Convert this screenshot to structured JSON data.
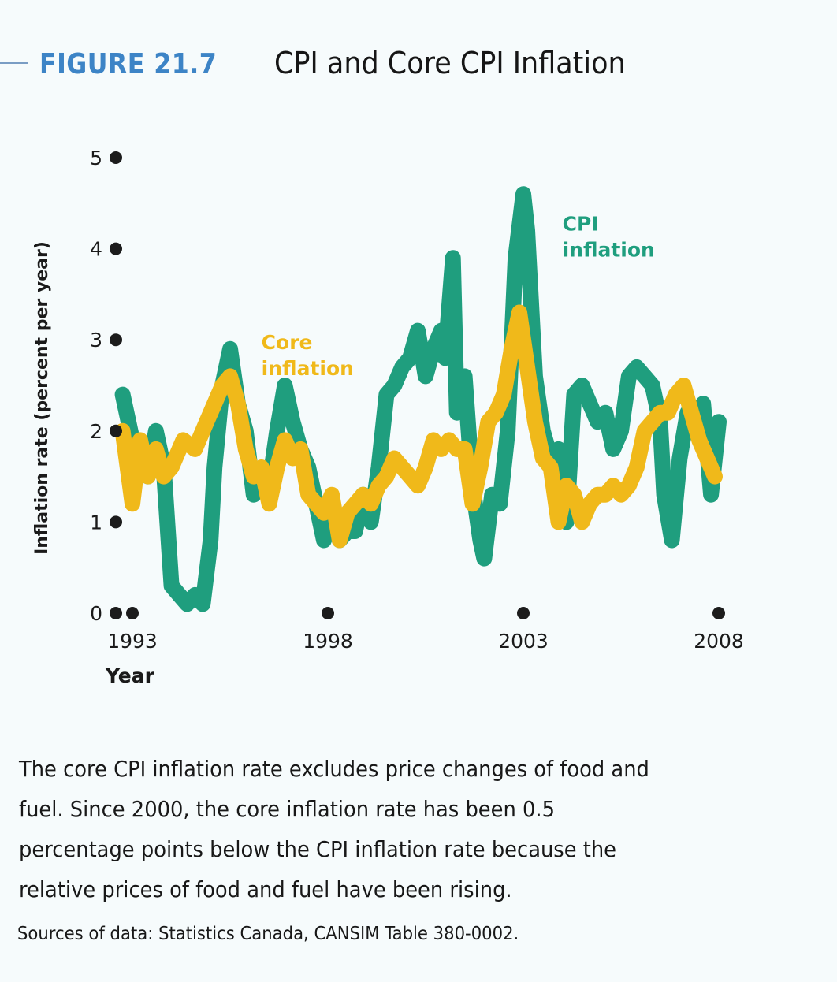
{
  "figure": {
    "label": "FIGURE 21.7",
    "title": "CPI and Core CPI Inflation"
  },
  "caption": "The core CPI inflation rate excludes price changes of food and fuel. Since 2000, the core inflation rate has been 0.5 percentage points below the CPI inflation rate because the relative prices of food and fuel have been rising.",
  "source": "Sources of data: Statistics Canada, CANSIM Table 380-0002.",
  "colors": {
    "cpi": "#1f9e7e",
    "core": "#f0b91a",
    "figure_label": "#3d84c6",
    "tick_dot": "#1c1c1c"
  },
  "chart_data": {
    "type": "line",
    "title": "CPI and Core CPI Inflation",
    "xlabel": "Year",
    "ylabel": "Inflation rate (percent per year)",
    "xlim": [
      1993,
      2008
    ],
    "ylim": [
      0,
      5
    ],
    "x_ticks": [
      1993,
      1998,
      2003,
      2008
    ],
    "y_ticks": [
      0,
      1,
      2,
      3,
      4,
      5
    ],
    "grid": false,
    "annotations": [
      {
        "text": [
          "CPI",
          "inflation"
        ],
        "series": "CPI inflation",
        "near_x": 2004.0,
        "near_y": 4.2
      },
      {
        "text": [
          "Core",
          "inflation"
        ],
        "series": "Core inflation",
        "near_x": 1996.3,
        "near_y": 2.9
      }
    ],
    "series": [
      {
        "name": "CPI inflation",
        "x": [
          1992.75,
          1993.0,
          1993.2,
          1993.4,
          1993.6,
          1993.8,
          1994.0,
          1994.2,
          1994.4,
          1994.6,
          1994.8,
          1995.0,
          1995.1,
          1995.3,
          1995.5,
          1995.7,
          1995.9,
          1996.1,
          1996.3,
          1996.5,
          1996.7,
          1996.9,
          1997.1,
          1997.3,
          1997.5,
          1997.7,
          1997.9,
          1998.1,
          1998.3,
          1998.5,
          1998.7,
          1998.9,
          1999.1,
          1999.3,
          1999.5,
          1999.7,
          1999.9,
          2000.1,
          2000.3,
          2000.5,
          2000.7,
          2000.9,
          2001.0,
          2001.2,
          2001.3,
          2001.5,
          2001.7,
          2001.9,
          2002.0,
          2002.2,
          2002.4,
          2002.6,
          2002.8,
          2003.0,
          2003.1,
          2003.3,
          2003.5,
          2003.7,
          2003.9,
          2004.1,
          2004.3,
          2004.5,
          2004.7,
          2004.9,
          2005.1,
          2005.3,
          2005.5,
          2005.7,
          2005.9,
          2006.1,
          2006.3,
          2006.5,
          2006.6,
          2006.8,
          2007.0,
          2007.2,
          2007.4,
          2007.6,
          2007.8,
          2008.0
        ],
        "values": [
          2.4,
          1.9,
          1.8,
          1.5,
          2.0,
          1.6,
          0.3,
          0.2,
          0.1,
          0.2,
          0.1,
          0.8,
          1.6,
          2.5,
          2.9,
          2.3,
          2.0,
          1.3,
          1.4,
          1.4,
          2.0,
          2.5,
          2.1,
          1.8,
          1.6,
          1.2,
          0.8,
          1.1,
          0.8,
          0.9,
          0.9,
          1.3,
          1.0,
          1.6,
          2.4,
          2.5,
          2.7,
          2.8,
          3.1,
          2.6,
          2.9,
          3.1,
          2.8,
          3.9,
          2.2,
          2.6,
          1.4,
          0.8,
          0.6,
          1.3,
          1.2,
          2.0,
          3.9,
          4.6,
          4.2,
          2.6,
          2.0,
          1.7,
          1.8,
          1.0,
          2.4,
          2.5,
          2.3,
          2.1,
          2.2,
          1.8,
          2.0,
          2.6,
          2.7,
          2.6,
          2.5,
          2.1,
          1.3,
          0.8,
          1.7,
          2.2,
          2.0,
          2.3,
          1.3,
          2.1
        ]
      },
      {
        "name": "Core inflation",
        "x": [
          1992.75,
          1993.0,
          1993.2,
          1993.4,
          1993.6,
          1993.8,
          1994.0,
          1994.3,
          1994.6,
          1994.9,
          1995.1,
          1995.3,
          1995.5,
          1995.7,
          1995.9,
          1996.1,
          1996.3,
          1996.5,
          1996.7,
          1996.9,
          1997.1,
          1997.3,
          1997.5,
          1997.7,
          1997.9,
          1998.1,
          1998.3,
          1998.5,
          1998.7,
          1998.9,
          1999.1,
          1999.3,
          1999.5,
          1999.7,
          1999.9,
          2000.1,
          2000.3,
          2000.5,
          2000.7,
          2000.9,
          2001.1,
          2001.3,
          2001.5,
          2001.7,
          2001.9,
          2002.1,
          2002.3,
          2002.5,
          2002.7,
          2002.9,
          2003.1,
          2003.3,
          2003.5,
          2003.7,
          2003.9,
          2004.1,
          2004.3,
          2004.5,
          2004.7,
          2004.9,
          2005.1,
          2005.3,
          2005.5,
          2005.7,
          2005.9,
          2006.1,
          2006.3,
          2006.5,
          2006.7,
          2006.9,
          2007.1,
          2007.3,
          2007.5,
          2007.7,
          2007.9
        ],
        "values": [
          2.0,
          1.2,
          1.9,
          1.5,
          1.8,
          1.5,
          1.6,
          1.9,
          1.8,
          2.1,
          2.3,
          2.5,
          2.6,
          2.3,
          1.8,
          1.5,
          1.6,
          1.2,
          1.6,
          1.9,
          1.7,
          1.8,
          1.3,
          1.2,
          1.1,
          1.3,
          0.8,
          1.1,
          1.2,
          1.3,
          1.2,
          1.4,
          1.5,
          1.7,
          1.6,
          1.5,
          1.4,
          1.6,
          1.9,
          1.8,
          1.9,
          1.8,
          1.8,
          1.2,
          1.6,
          2.1,
          2.2,
          2.4,
          2.9,
          3.3,
          2.7,
          2.1,
          1.7,
          1.6,
          1.0,
          1.4,
          1.3,
          1.0,
          1.2,
          1.3,
          1.3,
          1.4,
          1.3,
          1.4,
          1.6,
          2.0,
          2.1,
          2.2,
          2.2,
          2.4,
          2.5,
          2.2,
          1.9,
          1.7,
          1.5
        ]
      }
    ]
  }
}
